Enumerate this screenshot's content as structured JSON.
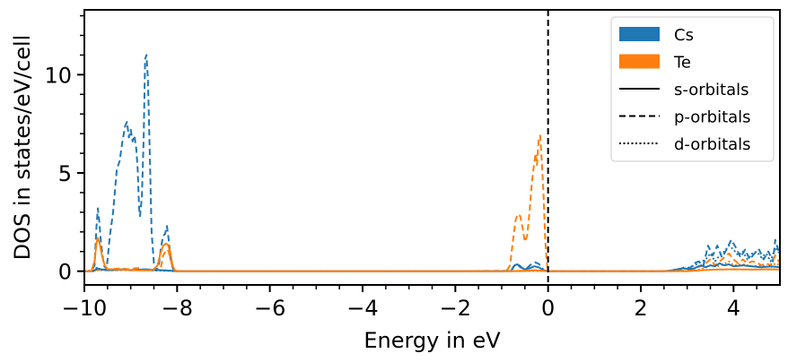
{
  "chart_data": {
    "type": "line",
    "title": "",
    "xlabel": "Energy in eV",
    "ylabel": "DOS in states/eV/cell",
    "xlim": [
      -10,
      5
    ],
    "ylim": [
      -0.7,
      13.3
    ],
    "grid": false,
    "legend_placement": "top-right",
    "fermi_level": 0,
    "x_ticks": [
      {
        "value": -10,
        "label": "−10"
      },
      {
        "value": -8,
        "label": "−8"
      },
      {
        "value": -6,
        "label": "−6"
      },
      {
        "value": -4,
        "label": "−4"
      },
      {
        "value": -2,
        "label": "−2"
      },
      {
        "value": 0,
        "label": "0"
      },
      {
        "value": 2,
        "label": "2"
      },
      {
        "value": 4,
        "label": "4"
      }
    ],
    "y_ticks": [
      {
        "value": 0,
        "label": "0"
      },
      {
        "value": 5,
        "label": "5"
      },
      {
        "value": 10,
        "label": "10"
      }
    ],
    "legend": {
      "entries": [
        {
          "label": "Cs",
          "kind": "patch",
          "color": "#1f77b4"
        },
        {
          "label": "Te",
          "kind": "patch",
          "color": "#ff7f0e"
        },
        {
          "label": "s-orbitals",
          "kind": "line",
          "dash": "solid"
        },
        {
          "label": "p-orbitals",
          "kind": "line",
          "dash": "dashed"
        },
        {
          "label": "d-orbitals",
          "kind": "line",
          "dash": "dotted"
        }
      ]
    },
    "series": [
      {
        "element": "Cs",
        "orbital": "p",
        "color": "#1f77b4",
        "dash": "dashed",
        "points": [
          [
            -10,
            0
          ],
          [
            -9.85,
            0
          ],
          [
            -9.78,
            0.3
          ],
          [
            -9.74,
            2.2
          ],
          [
            -9.71,
            3.2
          ],
          [
            -9.68,
            2.6
          ],
          [
            -9.64,
            1.4
          ],
          [
            -9.58,
            0.3
          ],
          [
            -9.52,
            0.1
          ],
          [
            -9.45,
            1.8
          ],
          [
            -9.38,
            3.0
          ],
          [
            -9.3,
            5.2
          ],
          [
            -9.24,
            5.6
          ],
          [
            -9.18,
            6.6
          ],
          [
            -9.12,
            7.4
          ],
          [
            -9.08,
            7.6
          ],
          [
            -9.04,
            6.8
          ],
          [
            -9.0,
            7.2
          ],
          [
            -8.96,
            6.6
          ],
          [
            -8.92,
            6.9
          ],
          [
            -8.88,
            6.2
          ],
          [
            -8.85,
            5.2
          ],
          [
            -8.82,
            3.2
          ],
          [
            -8.8,
            2.8
          ],
          [
            -8.76,
            3.8
          ],
          [
            -8.72,
            6.8
          ],
          [
            -8.69,
            10.8
          ],
          [
            -8.66,
            11.0
          ],
          [
            -8.63,
            9.8
          ],
          [
            -8.59,
            6.0
          ],
          [
            -8.55,
            2.0
          ],
          [
            -8.5,
            0.4
          ],
          [
            -8.45,
            0.05
          ],
          [
            -8.4,
            0.2
          ],
          [
            -8.35,
            1.2
          ],
          [
            -8.3,
            1.8
          ],
          [
            -8.26,
            1.9
          ],
          [
            -8.22,
            2.3
          ],
          [
            -8.18,
            1.6
          ],
          [
            -8.14,
            0.6
          ],
          [
            -8.08,
            0.05
          ],
          [
            -8.0,
            0
          ],
          [
            -5,
            0
          ],
          [
            -2,
            0
          ],
          [
            -0.8,
            0.02
          ],
          [
            -0.74,
            0.25
          ],
          [
            -0.68,
            0.38
          ],
          [
            -0.62,
            0.3
          ],
          [
            -0.55,
            0.15
          ],
          [
            -0.48,
            0.1
          ],
          [
            -0.4,
            0.28
          ],
          [
            -0.34,
            0.38
          ],
          [
            -0.28,
            0.45
          ],
          [
            -0.22,
            0.4
          ],
          [
            -0.16,
            0.3
          ],
          [
            -0.1,
            0.05
          ],
          [
            0,
            0
          ],
          [
            2.6,
            0
          ],
          [
            2.7,
            0.05
          ],
          [
            2.78,
            0.15
          ],
          [
            2.85,
            0.1
          ],
          [
            2.95,
            0.22
          ],
          [
            3.05,
            0.12
          ],
          [
            3.15,
            0.4
          ],
          [
            3.25,
            0.5
          ],
          [
            3.35,
            0.3
          ],
          [
            3.45,
            1.3
          ],
          [
            3.55,
            0.8
          ],
          [
            3.65,
            1.3
          ],
          [
            3.75,
            0.7
          ],
          [
            3.85,
            1.1
          ],
          [
            3.95,
            1.6
          ],
          [
            4.05,
            1.2
          ],
          [
            4.15,
            0.7
          ],
          [
            4.25,
            1.1
          ],
          [
            4.35,
            0.6
          ],
          [
            4.45,
            0.9
          ],
          [
            4.55,
            1.1
          ],
          [
            4.65,
            0.6
          ],
          [
            4.75,
            1.0
          ],
          [
            4.85,
            0.5
          ],
          [
            4.9,
            1.6
          ],
          [
            4.95,
            1.2
          ],
          [
            5,
            0.8
          ]
        ]
      },
      {
        "element": "Te",
        "orbital": "p",
        "color": "#ff7f0e",
        "dash": "dashed",
        "points": [
          [
            -10,
            0
          ],
          [
            -9.8,
            0
          ],
          [
            -9.72,
            0.1
          ],
          [
            -9.65,
            0.05
          ],
          [
            -9.5,
            0.1
          ],
          [
            -9.4,
            0.1
          ],
          [
            -9.2,
            0.15
          ],
          [
            -9.05,
            0.1
          ],
          [
            -8.9,
            0.15
          ],
          [
            -8.8,
            0.15
          ],
          [
            -8.7,
            0.05
          ],
          [
            -8.6,
            0.1
          ],
          [
            -8.45,
            0.05
          ],
          [
            -8.35,
            0.2
          ],
          [
            -8.3,
            0.8
          ],
          [
            -8.25,
            1.0
          ],
          [
            -8.2,
            1.1
          ],
          [
            -8.15,
            0.7
          ],
          [
            -8.1,
            0.2
          ],
          [
            -8.05,
            0
          ],
          [
            -5,
            0
          ],
          [
            -2,
            0
          ],
          [
            -0.9,
            0
          ],
          [
            -0.82,
            0.3
          ],
          [
            -0.76,
            1.5
          ],
          [
            -0.7,
            2.6
          ],
          [
            -0.65,
            2.9
          ],
          [
            -0.6,
            2.8
          ],
          [
            -0.55,
            2.2
          ],
          [
            -0.5,
            1.5
          ],
          [
            -0.45,
            1.8
          ],
          [
            -0.4,
            3.0
          ],
          [
            -0.35,
            4.5
          ],
          [
            -0.3,
            5.5
          ],
          [
            -0.27,
            6.0
          ],
          [
            -0.24,
            5.4
          ],
          [
            -0.2,
            6.8
          ],
          [
            -0.17,
            6.9
          ],
          [
            -0.14,
            5.8
          ],
          [
            -0.1,
            4.0
          ],
          [
            -0.06,
            1.5
          ],
          [
            -0.02,
            0.3
          ],
          [
            0,
            0
          ],
          [
            2.8,
            0
          ],
          [
            3.0,
            0.05
          ],
          [
            3.2,
            0.2
          ],
          [
            3.3,
            0.25
          ],
          [
            3.4,
            0.4
          ],
          [
            3.5,
            0.6
          ],
          [
            3.6,
            0.3
          ],
          [
            3.7,
            0.5
          ],
          [
            3.8,
            0.7
          ],
          [
            3.9,
            0.9
          ],
          [
            4.0,
            0.6
          ],
          [
            4.1,
            0.4
          ],
          [
            4.2,
            0.6
          ],
          [
            4.3,
            0.4
          ],
          [
            4.4,
            0.5
          ],
          [
            4.5,
            0.45
          ],
          [
            4.6,
            0.3
          ],
          [
            4.7,
            0.4
          ],
          [
            4.8,
            0.3
          ],
          [
            4.9,
            0.8
          ],
          [
            5,
            0.4
          ]
        ]
      },
      {
        "element": "Cs",
        "orbital": "d",
        "color": "#1f77b4",
        "dash": "dotted",
        "points": [
          [
            -10,
            0
          ],
          [
            -9.8,
            0.05
          ],
          [
            -9.72,
            0.2
          ],
          [
            -9.66,
            0.1
          ],
          [
            -9.4,
            0.05
          ],
          [
            -9.1,
            0.08
          ],
          [
            -8.8,
            0.05
          ],
          [
            -8.4,
            0.03
          ],
          [
            -8.0,
            0
          ],
          [
            -0.6,
            0
          ],
          [
            -0.3,
            0.05
          ],
          [
            0,
            0
          ],
          [
            2.6,
            0
          ],
          [
            2.8,
            0.1
          ],
          [
            3.0,
            0.15
          ],
          [
            3.2,
            0.35
          ],
          [
            3.4,
            0.6
          ],
          [
            3.5,
            0.9
          ],
          [
            3.6,
            0.5
          ],
          [
            3.7,
            0.8
          ],
          [
            3.8,
            1.0
          ],
          [
            3.9,
            1.3
          ],
          [
            4.0,
            1.1
          ],
          [
            4.1,
            0.8
          ],
          [
            4.2,
            1.0
          ],
          [
            4.3,
            0.6
          ],
          [
            4.4,
            0.9
          ],
          [
            4.5,
            1.0
          ],
          [
            4.6,
            0.7
          ],
          [
            4.7,
            0.9
          ],
          [
            4.8,
            0.5
          ],
          [
            4.9,
            1.2
          ],
          [
            5,
            0.9
          ]
        ]
      },
      {
        "element": "Te",
        "orbital": "d",
        "color": "#ff7f0e",
        "dash": "dotted",
        "points": [
          [
            -10,
            0
          ],
          [
            -9.7,
            0.05
          ],
          [
            -9.0,
            0.05
          ],
          [
            -8.2,
            0.05
          ],
          [
            -8.0,
            0
          ],
          [
            0,
            0
          ],
          [
            3.0,
            0
          ],
          [
            3.3,
            0.1
          ],
          [
            3.5,
            0.3
          ],
          [
            3.7,
            0.25
          ],
          [
            3.9,
            0.5
          ],
          [
            4.0,
            0.3
          ],
          [
            4.2,
            0.35
          ],
          [
            4.4,
            0.25
          ],
          [
            4.6,
            0.3
          ],
          [
            4.8,
            0.2
          ],
          [
            4.9,
            0.4
          ],
          [
            5,
            0.3
          ]
        ]
      },
      {
        "element": "Cs",
        "orbital": "s",
        "color": "#1f77b4",
        "dash": "solid",
        "points": [
          [
            -10,
            0
          ],
          [
            -9.8,
            0
          ],
          [
            -9.72,
            0.15
          ],
          [
            -9.66,
            0.1
          ],
          [
            -9.5,
            0.05
          ],
          [
            -9.2,
            0.1
          ],
          [
            -9.0,
            0.05
          ],
          [
            -8.7,
            0.1
          ],
          [
            -8.3,
            0.05
          ],
          [
            -8.0,
            0
          ],
          [
            -0.8,
            0
          ],
          [
            -0.72,
            0.3
          ],
          [
            -0.66,
            0.35
          ],
          [
            -0.6,
            0.2
          ],
          [
            -0.5,
            0.1
          ],
          [
            -0.4,
            0.15
          ],
          [
            -0.3,
            0.25
          ],
          [
            -0.2,
            0.2
          ],
          [
            -0.1,
            0.05
          ],
          [
            0,
            0
          ],
          [
            2.5,
            0
          ],
          [
            2.7,
            0.05
          ],
          [
            2.9,
            0.15
          ],
          [
            3.1,
            0.1
          ],
          [
            3.2,
            0.2
          ],
          [
            3.3,
            0.3
          ],
          [
            3.4,
            0.2
          ],
          [
            3.5,
            0.3
          ],
          [
            3.6,
            0.25
          ],
          [
            3.7,
            0.4
          ],
          [
            3.8,
            0.3
          ],
          [
            3.9,
            0.35
          ],
          [
            4.0,
            0.25
          ],
          [
            4.2,
            0.3
          ],
          [
            4.4,
            0.25
          ],
          [
            4.6,
            0.2
          ],
          [
            4.8,
            0.25
          ],
          [
            5,
            0.2
          ]
        ]
      },
      {
        "element": "Te",
        "orbital": "s",
        "color": "#ff7f0e",
        "dash": "solid",
        "points": [
          [
            -10,
            0
          ],
          [
            -9.85,
            0
          ],
          [
            -9.78,
            0.5
          ],
          [
            -9.74,
            1.4
          ],
          [
            -9.71,
            1.7
          ],
          [
            -9.67,
            1.4
          ],
          [
            -9.62,
            0.8
          ],
          [
            -9.56,
            0.3
          ],
          [
            -9.5,
            0.1
          ],
          [
            -9.3,
            0.1
          ],
          [
            -9.1,
            0.08
          ],
          [
            -8.9,
            0.05
          ],
          [
            -8.6,
            0.05
          ],
          [
            -8.5,
            0.1
          ],
          [
            -8.42,
            0.3
          ],
          [
            -8.36,
            0.9
          ],
          [
            -8.3,
            1.3
          ],
          [
            -8.24,
            1.4
          ],
          [
            -8.2,
            1.35
          ],
          [
            -8.15,
            1.0
          ],
          [
            -8.1,
            0.3
          ],
          [
            -8.05,
            0.05
          ],
          [
            -8.0,
            0
          ],
          [
            -0.8,
            0
          ],
          [
            -0.6,
            0.02
          ],
          [
            -0.3,
            0.05
          ],
          [
            0,
            0
          ],
          [
            3.0,
            0
          ],
          [
            3.3,
            0.05
          ],
          [
            3.6,
            0.08
          ],
          [
            4.0,
            0.1
          ],
          [
            4.4,
            0.08
          ],
          [
            4.8,
            0.1
          ],
          [
            5,
            0.08
          ]
        ]
      }
    ]
  }
}
